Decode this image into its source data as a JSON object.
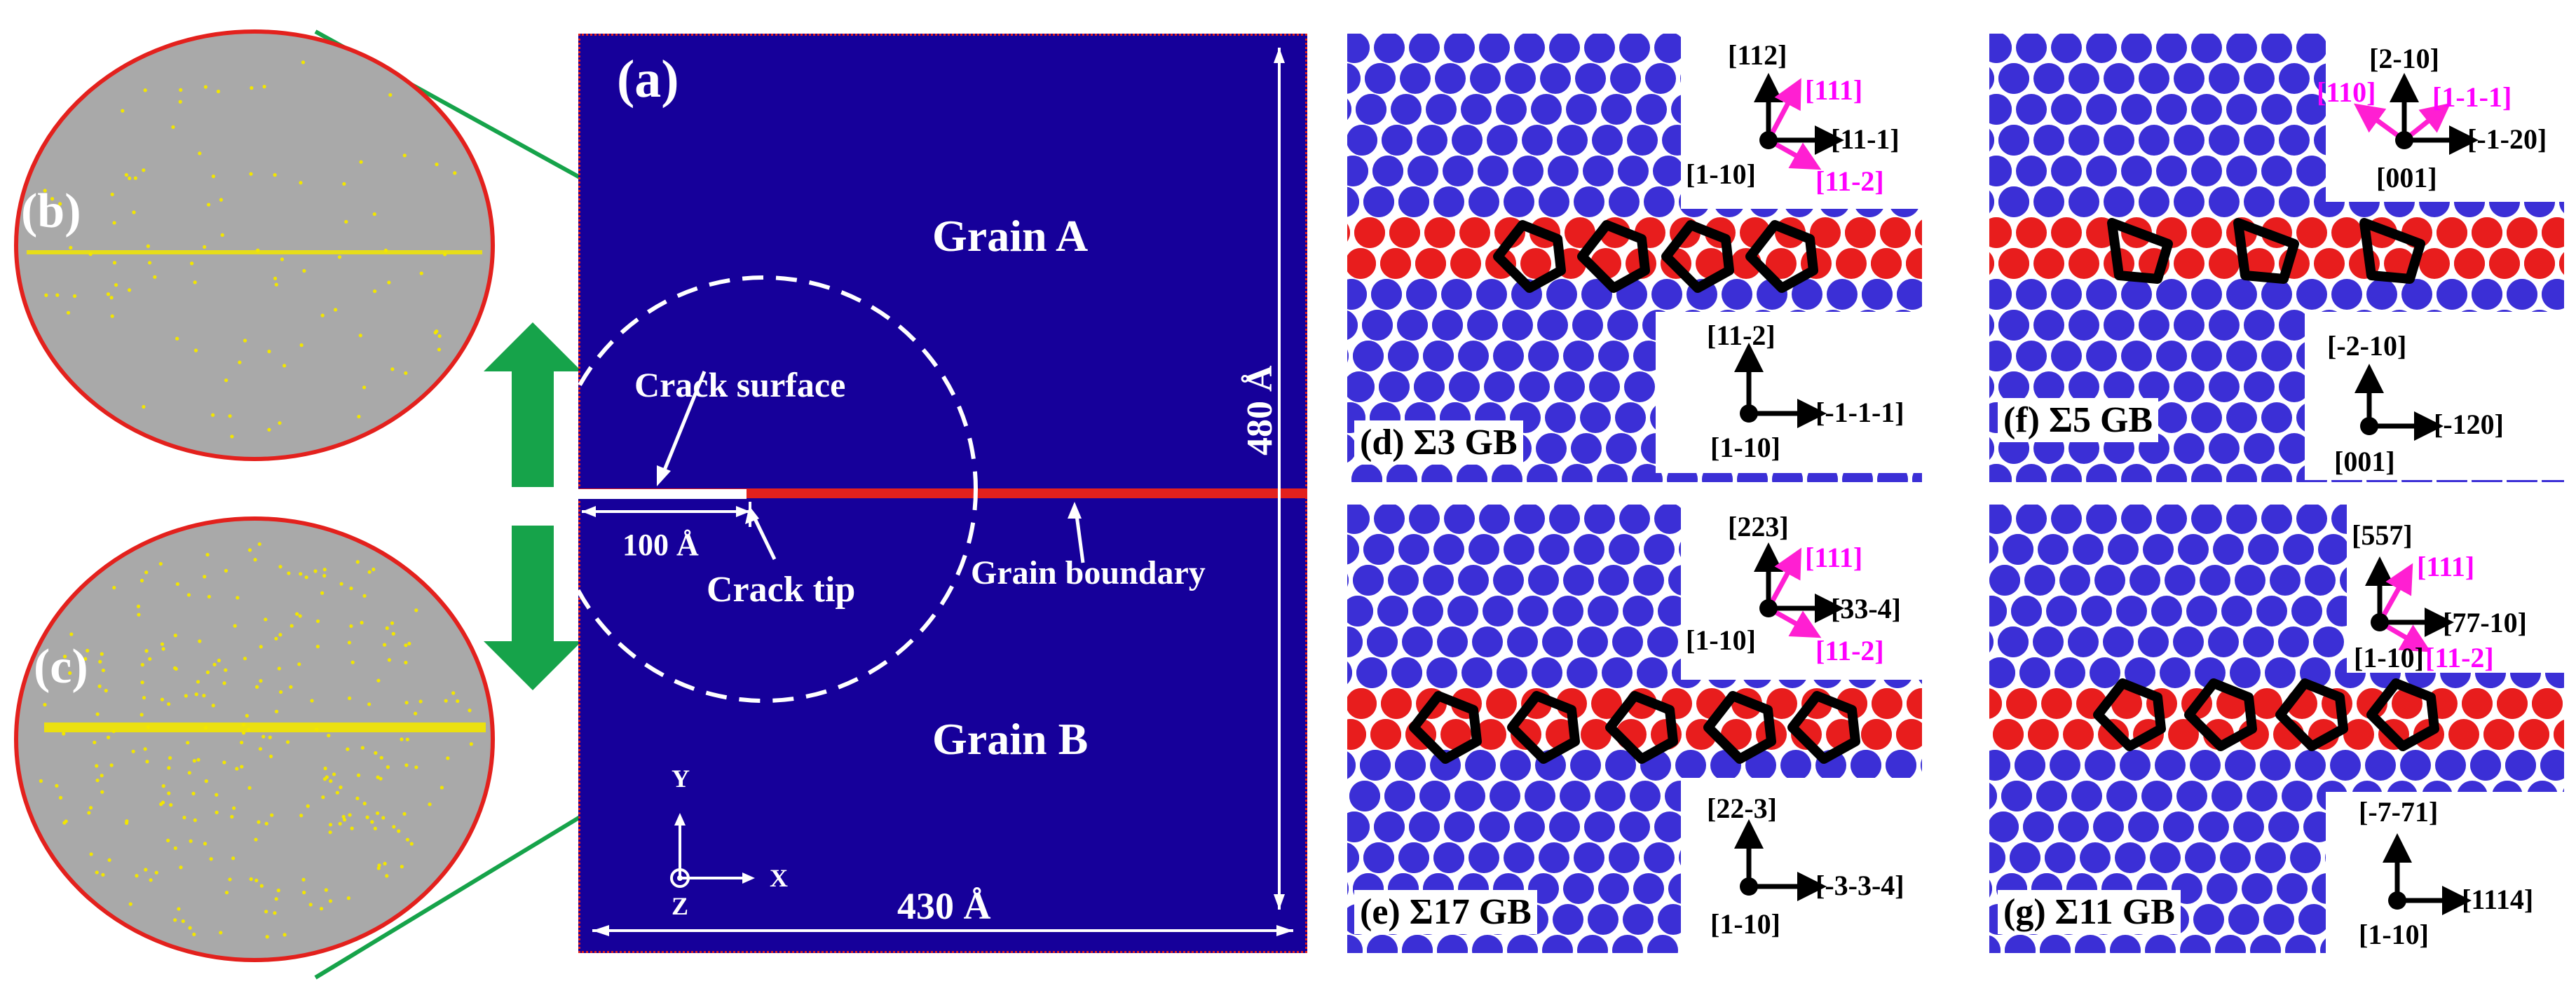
{
  "panel_a": {
    "label": "(a)",
    "grain_a": "Grain A",
    "grain_b": "Grain B",
    "crack_surface": "Crack surface",
    "crack_tip": "Crack tip",
    "grain_boundary": "Grain boundary",
    "crack_length": "100 Å",
    "width": "430 Å",
    "height": "480 Å",
    "axis_x": "X",
    "axis_y": "Y",
    "axis_z": "Z",
    "colors": {
      "grain": "#16009a",
      "boundary": "#e3211d",
      "frame": "#e3211d"
    }
  },
  "panel_b": {
    "label": "(b)"
  },
  "panel_c": {
    "label": "(c)"
  },
  "arrows": {
    "color": "#16a34a"
  },
  "zoom_lines_color": "#16a34a",
  "panel_d": {
    "title": "(d) Σ3 GB",
    "top_axes": {
      "up": "[112]",
      "right": "[11-1]",
      "out": "[1-10]",
      "pink_up": "[111]",
      "pink_down": "[11-2]"
    },
    "bottom_axes": {
      "up": "[11-2]",
      "right": "[-1-1-1]",
      "out": "[1-10]"
    }
  },
  "panel_e": {
    "title": "(e) Σ17 GB",
    "top_axes": {
      "up": "[223]",
      "right": "[33-4]",
      "out": "[1-10]",
      "pink_up": "[111]",
      "pink_down": "[11-2]"
    },
    "bottom_axes": {
      "up": "[22-3]",
      "right": "[-3-3-4]",
      "out": "[1-10]"
    }
  },
  "panel_f": {
    "title": "(f) Σ5 GB",
    "top_axes": {
      "up": "[2-10]",
      "right": "[-1-20]",
      "out": "[001]",
      "pink_left": "[110]",
      "pink_right": "[1-1-1]"
    },
    "bottom_axes": {
      "up": "[-2-10]",
      "right": "[-120]",
      "out": "[001]"
    }
  },
  "panel_g": {
    "title": "(g) Σ11 GB",
    "top_axes": {
      "up": "[557]",
      "right": "[77-10]",
      "out": "[1-10]",
      "pink_up": "[111]",
      "pink_down": "[11-2]"
    },
    "bottom_axes": {
      "up": "[-7-71]",
      "right": "[1114]",
      "out": "[1-10]"
    }
  },
  "atom_colors": {
    "blue": "#3b2fd6",
    "red": "#e81d1d",
    "bond": "#000000",
    "pink_arrow": "#ff1fd2"
  }
}
